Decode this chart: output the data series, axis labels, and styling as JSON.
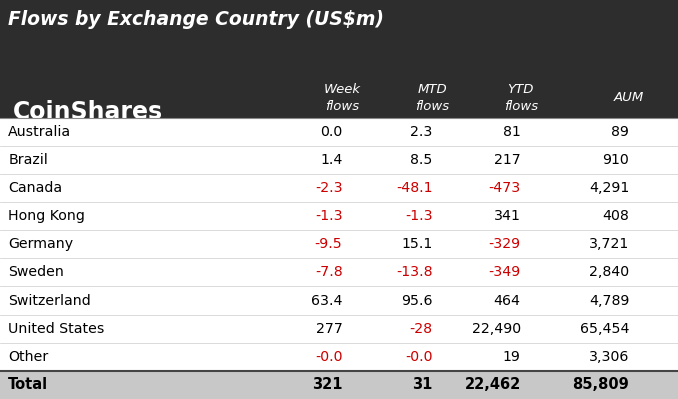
{
  "title": "Flows by Exchange Country (US$m)",
  "logo_text": "CoinShares",
  "header_bg": "#2d2d2d",
  "header_text_color": "#ffffff",
  "body_bg": "#ffffff",
  "body_text_color": "#000000",
  "negative_color": "#cc0000",
  "total_row_bg": "#c8c8c8",
  "rows": [
    {
      "country": "Australia",
      "week": "0.0",
      "mtd": "2.3",
      "ytd": "81",
      "aum": "89",
      "week_neg": false,
      "mtd_neg": false,
      "ytd_neg": false
    },
    {
      "country": "Brazil",
      "week": "1.4",
      "mtd": "8.5",
      "ytd": "217",
      "aum": "910",
      "week_neg": false,
      "mtd_neg": false,
      "ytd_neg": false
    },
    {
      "country": "Canada",
      "week": "-2.3",
      "mtd": "-48.1",
      "ytd": "-473",
      "aum": "4,291",
      "week_neg": true,
      "mtd_neg": true,
      "ytd_neg": true
    },
    {
      "country": "Hong Kong",
      "week": "-1.3",
      "mtd": "-1.3",
      "ytd": "341",
      "aum": "408",
      "week_neg": true,
      "mtd_neg": true,
      "ytd_neg": false
    },
    {
      "country": "Germany",
      "week": "-9.5",
      "mtd": "15.1",
      "ytd": "-329",
      "aum": "3,721",
      "week_neg": true,
      "mtd_neg": false,
      "ytd_neg": true
    },
    {
      "country": "Sweden",
      "week": "-7.8",
      "mtd": "-13.8",
      "ytd": "-349",
      "aum": "2,840",
      "week_neg": true,
      "mtd_neg": true,
      "ytd_neg": true
    },
    {
      "country": "Switzerland",
      "week": "63.4",
      "mtd": "95.6",
      "ytd": "464",
      "aum": "4,789",
      "week_neg": false,
      "mtd_neg": false,
      "ytd_neg": false
    },
    {
      "country": "United States",
      "week": "277",
      "mtd": "-28",
      "ytd": "22,490",
      "aum": "65,454",
      "week_neg": false,
      "mtd_neg": true,
      "ytd_neg": false
    },
    {
      "country": "Other",
      "week": "-0.0",
      "mtd": "-0.0",
      "ytd": "19",
      "aum": "3,306",
      "week_neg": true,
      "mtd_neg": true,
      "ytd_neg": false
    }
  ],
  "total": {
    "country": "Total",
    "week": "321",
    "mtd": "31",
    "ytd": "22,462",
    "aum": "85,809",
    "week_neg": false,
    "mtd_neg": false,
    "ytd_neg": false
  }
}
